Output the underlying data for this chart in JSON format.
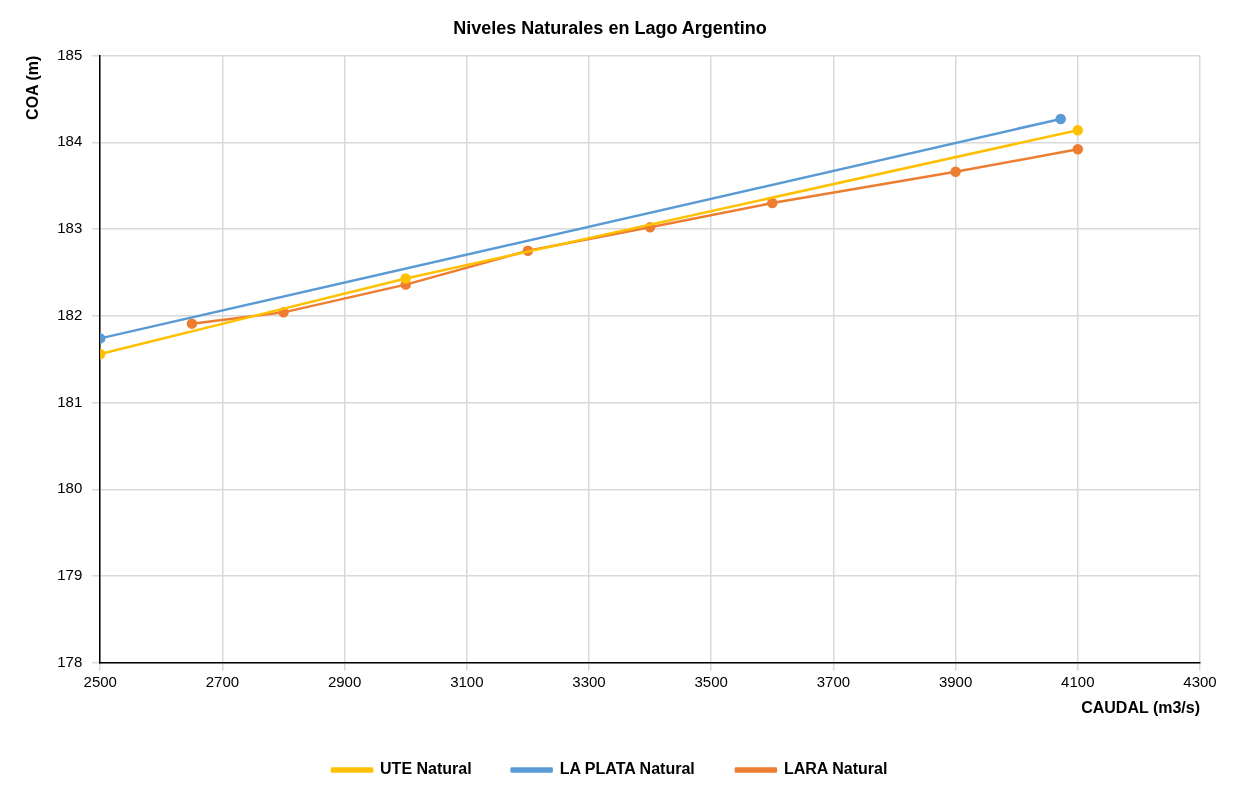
{
  "chart_data": {
    "type": "line",
    "title": "Niveles Naturales en Lago Argentino",
    "xlabel": "CAUDAL (m3/s)",
    "ylabel": "COA (m)",
    "xlim": [
      2500,
      4300
    ],
    "xticks": [
      2500,
      2700,
      2900,
      3100,
      3300,
      3500,
      3700,
      3900,
      4100,
      4300
    ],
    "ylim": [
      178,
      185
    ],
    "yticks": [
      178,
      179,
      180,
      181,
      182,
      183,
      184,
      185
    ],
    "grid": true,
    "legend": "bottom",
    "marker": "circle",
    "line_style": "solid",
    "series": [
      {
        "name": "UTE Natural",
        "color": "#ffc000",
        "x": [
          2500,
          3000,
          4100
        ],
        "values": [
          181.56,
          182.43,
          184.14
        ]
      },
      {
        "name": "LA PLATA Natural",
        "color": "#5b9bd5",
        "x": [
          2500,
          4072
        ],
        "values": [
          181.74,
          184.27
        ]
      },
      {
        "name": "LARA Natural",
        "color": "#ed7d31",
        "x": [
          2650,
          2800,
          3000,
          3200,
          3400,
          3600,
          3900,
          4100
        ],
        "values": [
          181.91,
          182.04,
          182.36,
          182.75,
          183.02,
          183.3,
          183.66,
          183.92
        ]
      }
    ]
  }
}
